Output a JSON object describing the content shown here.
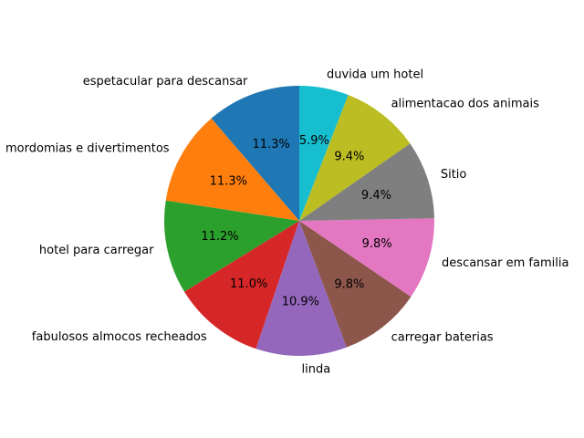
{
  "chart_data": {
    "type": "pie",
    "title": "",
    "start_angle_deg": 90,
    "direction": "counterclockwise",
    "slices": [
      {
        "label": "espetacular para descansar",
        "value": 11.3,
        "pct_label": "11.3%",
        "color": "#1f77b4"
      },
      {
        "label": "mordomias e divertimentos",
        "value": 11.3,
        "pct_label": "11.3%",
        "color": "#ff7f0e"
      },
      {
        "label": "hotel para carregar",
        "value": 11.2,
        "pct_label": "11.2%",
        "color": "#2ca02c"
      },
      {
        "label": "fabulosos almocos recheados",
        "value": 11.0,
        "pct_label": "11.0%",
        "color": "#d62728"
      },
      {
        "label": "linda",
        "value": 10.9,
        "pct_label": "10.9%",
        "color": "#9467bd"
      },
      {
        "label": "carregar baterias",
        "value": 9.8,
        "pct_label": "9.8%",
        "color": "#8c564b"
      },
      {
        "label": "descansar em familia",
        "value": 9.8,
        "pct_label": "9.8%",
        "color": "#e377c2"
      },
      {
        "label": "Sitio",
        "value": 9.4,
        "pct_label": "9.4%",
        "color": "#7f7f7f"
      },
      {
        "label": "alimentacao dos animais",
        "value": 9.4,
        "pct_label": "9.4%",
        "color": "#bcbd22"
      },
      {
        "label": "duvida um hotel",
        "value": 5.9,
        "pct_label": "5.9%",
        "color": "#17becf"
      }
    ]
  }
}
